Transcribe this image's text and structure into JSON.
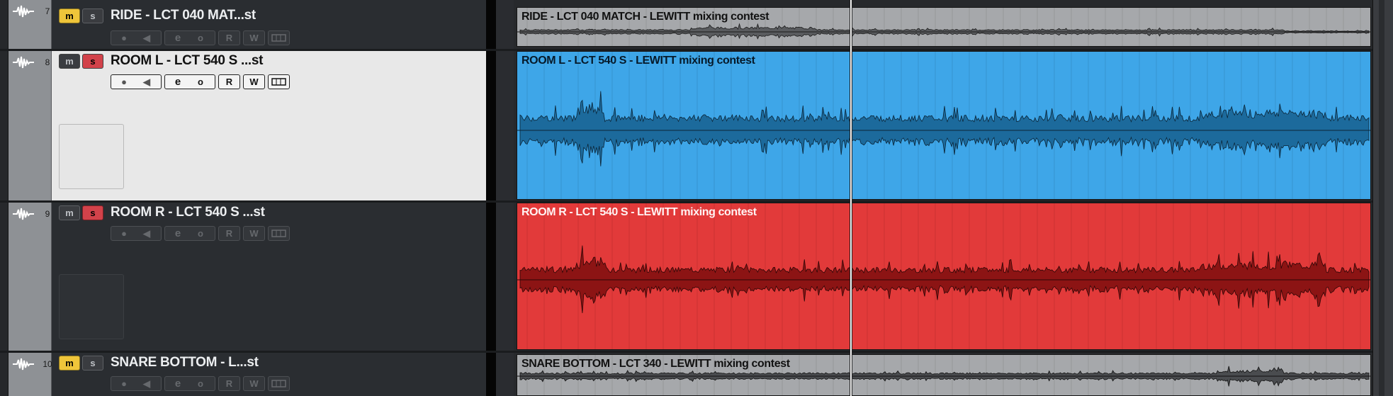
{
  "colors": {
    "mute_on": "#efc53a",
    "solo_on": "#d2424a",
    "selected_header": "#e8e8e8",
    "blue_clip": "#3ea6e8",
    "blue_wave": "#1c6a9c",
    "red_clip": "#e23a3a",
    "red_wave": "#8c1414",
    "gray_clip": "#a6a8ab",
    "gray_wave": "#404040"
  },
  "track_controls": {
    "mute_label": "m",
    "solo_label": "s",
    "read_label": "R",
    "write_label": "W"
  },
  "tracks": [
    {
      "number": "7",
      "name": "RIDE - LCT 040 MAT...st",
      "clip_name": "RIDE - LCT 040 MATCH - LEWITT mixing contest",
      "mute": true,
      "solo": false,
      "selected": false,
      "clip_color": "gray"
    },
    {
      "number": "8",
      "name": "ROOM L - LCT 540 S ...st",
      "clip_name": "ROOM L - LCT 540 S - LEWITT mixing contest",
      "mute": false,
      "solo": true,
      "selected": true,
      "clip_color": "blue"
    },
    {
      "number": "9",
      "name": "ROOM R - LCT 540 S ...st",
      "clip_name": "ROOM R - LCT 540 S - LEWITT mixing contest",
      "mute": false,
      "solo": true,
      "selected": false,
      "clip_color": "red"
    },
    {
      "number": "10",
      "name": "SNARE BOTTOM - L...st",
      "clip_name": "SNARE BOTTOM - LCT 340 - LEWITT mixing contest",
      "mute": true,
      "solo": false,
      "selected": false,
      "clip_color": "gray"
    }
  ]
}
